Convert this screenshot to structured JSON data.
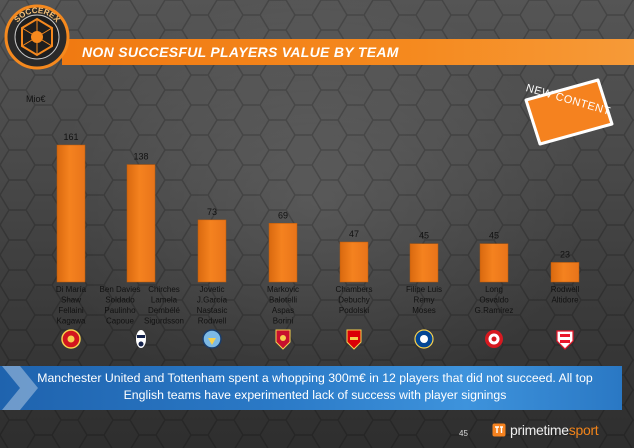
{
  "page": {
    "title": "NON SUCCESFUL PLAYERS VALUE BY TEAM",
    "badge": "NEW CONTENT",
    "logo_text": "SOCCEREX",
    "banner": "Manchester United and Tottenham spent a whopping 300m€ in 12 players that did not succeed. All top English teams have experimented lack of success with player signings",
    "page_number": "45",
    "brand_primary": "primetime",
    "brand_accent": "sport",
    "colors": {
      "bar": "#f5821f",
      "title_bar": "#f5891e",
      "banner": "#2b7ac7"
    }
  },
  "chart_data": {
    "type": "bar",
    "ylabel": "Mio€",
    "ylim": [
      0,
      161
    ],
    "grid": false,
    "legend": "none",
    "categories": [
      "Manchester United",
      "Tottenham",
      "Manchester City",
      "Liverpool",
      "Arsenal",
      "Chelsea",
      "Southampton",
      "Sunderland"
    ],
    "values": [
      161,
      138,
      73,
      69,
      47,
      45,
      45,
      23
    ],
    "player_groups": [
      [
        "Di María\nShaw\nFellaini\nKagawa"
      ],
      [
        "Ben Davies\nSoldado\nPaulinho\nCapoue",
        "Chirches\nLamela\nDembélé\nSigurdsson"
      ],
      [
        "Jovetic\nJ.García\nNastasic\nRodwell"
      ],
      [
        "Markovic\nBalotelli\nAspas\nBorini"
      ],
      [
        "Chambers\nDebuchy\nPodolski"
      ],
      [
        "Filipe Luis\nRemy\nMoses"
      ],
      [
        "Long\nOsvaldo\nG.Ramírez"
      ],
      [
        "Rodwell\nAltidore"
      ]
    ],
    "crests": [
      "man-utd-crest",
      "tottenham-crest",
      "man-city-crest",
      "liverpool-crest",
      "arsenal-crest",
      "chelsea-crest",
      "southampton-crest",
      "sunderland-crest"
    ]
  }
}
